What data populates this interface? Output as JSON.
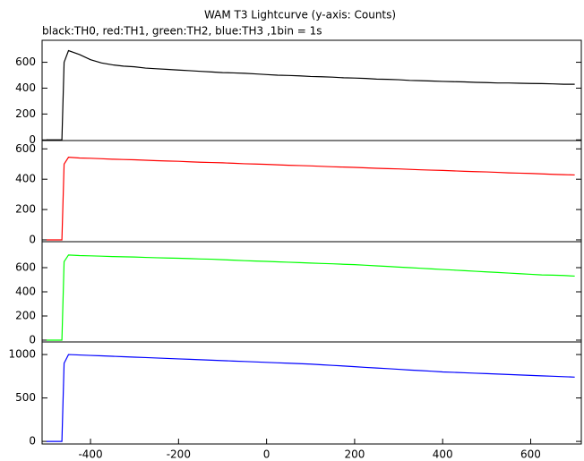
{
  "title": "WAM T3 Lightcurve (y-axis: Counts)",
  "subtitle": "black:TH0, red:TH1, green:TH2, blue:TH3 ,1bin = 1s",
  "chart_data": [
    {
      "type": "line",
      "xlim": [
        -510,
        715
      ],
      "ylim": [
        -5,
        770
      ],
      "yticks": [
        0,
        200,
        400,
        600
      ],
      "x": [
        -500,
        -475,
        -465,
        -460,
        -450,
        -425,
        -400,
        -375,
        -350,
        -325,
        -300,
        -275,
        -250,
        -225,
        -200,
        -175,
        -150,
        -125,
        -100,
        -75,
        -50,
        -25,
        0,
        25,
        50,
        75,
        100,
        125,
        150,
        175,
        200,
        225,
        250,
        275,
        300,
        325,
        350,
        375,
        400,
        425,
        450,
        475,
        500,
        525,
        550,
        575,
        600,
        625,
        650,
        675,
        700
      ],
      "series": [
        {
          "name": "TH0",
          "color": "#000000",
          "values": [
            0,
            0,
            0,
            600,
            690,
            660,
            620,
            595,
            580,
            570,
            565,
            555,
            550,
            545,
            540,
            535,
            530,
            525,
            520,
            518,
            515,
            510,
            505,
            500,
            498,
            495,
            490,
            488,
            485,
            480,
            478,
            475,
            470,
            468,
            465,
            460,
            458,
            455,
            452,
            450,
            448,
            445,
            443,
            440,
            440,
            438,
            436,
            435,
            433,
            430,
            430
          ]
        }
      ]
    },
    {
      "type": "line",
      "xlim": [
        -510,
        715
      ],
      "ylim": [
        -12,
        655
      ],
      "yticks": [
        0,
        200,
        400,
        600
      ],
      "x": [
        -500,
        -475,
        -465,
        -460,
        -450,
        -425,
        -400,
        -375,
        -350,
        -325,
        -300,
        -275,
        -250,
        -225,
        -200,
        -175,
        -150,
        -125,
        -100,
        -75,
        -50,
        -25,
        0,
        25,
        50,
        75,
        100,
        125,
        150,
        175,
        200,
        225,
        250,
        275,
        300,
        325,
        350,
        375,
        400,
        425,
        450,
        475,
        500,
        525,
        550,
        575,
        600,
        625,
        650,
        675,
        700
      ],
      "series": [
        {
          "name": "TH1",
          "color": "#ff0000",
          "values": [
            0,
            0,
            0,
            500,
            545,
            540,
            538,
            535,
            532,
            530,
            528,
            525,
            522,
            520,
            518,
            515,
            512,
            510,
            508,
            505,
            502,
            500,
            498,
            495,
            492,
            490,
            488,
            485,
            482,
            480,
            478,
            475,
            472,
            470,
            468,
            465,
            462,
            460,
            458,
            455,
            452,
            450,
            448,
            445,
            442,
            440,
            438,
            435,
            432,
            430,
            428
          ]
        }
      ]
    },
    {
      "type": "line",
      "xlim": [
        -510,
        715
      ],
      "ylim": [
        -15,
        815
      ],
      "yticks": [
        0,
        200,
        400,
        600
      ],
      "x": [
        -500,
        -475,
        -465,
        -460,
        -450,
        -425,
        -400,
        -375,
        -350,
        -325,
        -300,
        -275,
        -250,
        -225,
        -200,
        -175,
        -150,
        -125,
        -100,
        -75,
        -50,
        -25,
        0,
        25,
        50,
        75,
        100,
        125,
        150,
        175,
        200,
        225,
        250,
        275,
        300,
        325,
        350,
        375,
        400,
        425,
        450,
        475,
        500,
        525,
        550,
        575,
        600,
        625,
        650,
        675,
        700
      ],
      "series": [
        {
          "name": "TH2",
          "color": "#00ff00",
          "values": [
            0,
            0,
            0,
            650,
            705,
            700,
            698,
            695,
            692,
            690,
            688,
            685,
            682,
            680,
            678,
            675,
            672,
            670,
            666,
            662,
            658,
            655,
            652,
            648,
            645,
            642,
            638,
            635,
            632,
            628,
            625,
            620,
            615,
            610,
            605,
            600,
            595,
            590,
            585,
            580,
            575,
            570,
            565,
            560,
            555,
            550,
            545,
            540,
            538,
            535,
            530
          ]
        }
      ]
    },
    {
      "type": "line",
      "xlim": [
        -510,
        715
      ],
      "ylim": [
        -30,
        1145
      ],
      "yticks": [
        0,
        500,
        1000
      ],
      "xticks": [
        -400,
        -200,
        0,
        200,
        400,
        600
      ],
      "x": [
        -500,
        -475,
        -465,
        -460,
        -450,
        -425,
        -400,
        -375,
        -350,
        -325,
        -300,
        -275,
        -250,
        -225,
        -200,
        -175,
        -150,
        -125,
        -100,
        -75,
        -50,
        -25,
        0,
        25,
        50,
        75,
        100,
        125,
        150,
        175,
        200,
        225,
        250,
        275,
        300,
        325,
        350,
        375,
        400,
        425,
        450,
        475,
        500,
        525,
        550,
        575,
        600,
        625,
        650,
        675,
        700
      ],
      "series": [
        {
          "name": "TH3",
          "color": "#0000ff",
          "values": [
            0,
            0,
            0,
            900,
            1000,
            995,
            990,
            985,
            980,
            975,
            970,
            965,
            960,
            955,
            950,
            945,
            940,
            935,
            930,
            925,
            920,
            915,
            910,
            905,
            900,
            895,
            890,
            882,
            875,
            868,
            860,
            852,
            845,
            838,
            830,
            822,
            815,
            808,
            800,
            795,
            790,
            785,
            780,
            775,
            770,
            765,
            760,
            755,
            750,
            745,
            740
          ]
        }
      ]
    }
  ]
}
